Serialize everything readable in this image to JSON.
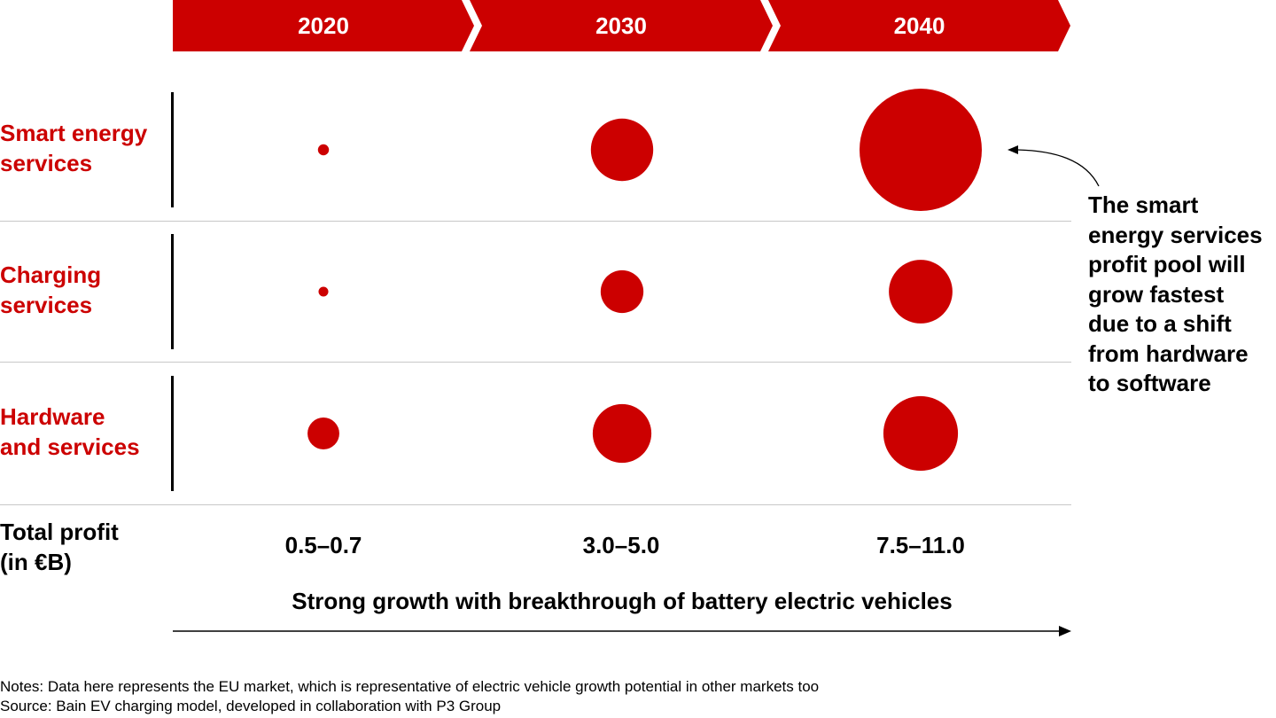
{
  "chart_data": {
    "type": "scatter",
    "title": "",
    "categories": [
      "2020",
      "2030",
      "2040"
    ],
    "rows": [
      "Smart energy services",
      "Charging services",
      "Hardware and services"
    ],
    "bubble_size_relative": [
      [
        0.09,
        0.51,
        1.0
      ],
      [
        0.08,
        0.35,
        0.52
      ],
      [
        0.26,
        0.48,
        0.61
      ]
    ],
    "total_profit": [
      "0.5–0.7",
      "3.0–5.0",
      "7.5–11.0"
    ],
    "bubble_color": "#cc0000"
  },
  "header": {
    "years": [
      "2020",
      "2030",
      "2040"
    ]
  },
  "rows": [
    {
      "label_line1": "Smart energy",
      "label_line2": "services"
    },
    {
      "label_line1": "Charging",
      "label_line2": "services"
    },
    {
      "label_line1": "Hardware",
      "label_line2": "and services"
    }
  ],
  "totals": {
    "label_line1": "Total profit",
    "label_line2": "(in €B)",
    "values": [
      "0.5–0.7",
      "3.0–5.0",
      "7.5–11.0"
    ]
  },
  "arrow_label": "Strong growth with breakthrough of battery electric vehicles",
  "callout": {
    "lines": [
      "The smart",
      "energy services",
      "profit pool will",
      "grow fastest",
      "due to a shift",
      "from hardware",
      "to software"
    ]
  },
  "notes": {
    "notes_text": "Notes: Data here represents the EU market, which is representative of electric vehicle growth potential in other markets too",
    "source_text": "Source: Bain EV charging model, developed in collaboration with P3 Group"
  }
}
